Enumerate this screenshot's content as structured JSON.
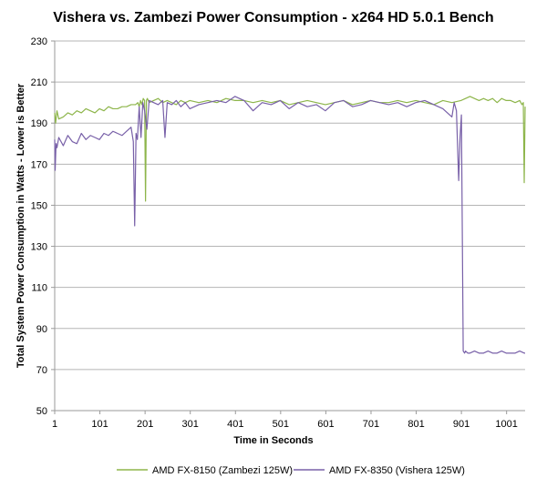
{
  "chart_data": {
    "type": "line",
    "title": "Vishera vs. Zambezi Power Consumption - x264 HD 5.0.1 Bench",
    "xlabel": "Time in Seconds",
    "ylabel": "Total System Power Consumption in Watts - Lower is Better",
    "xlim": [
      1,
      1042
    ],
    "ylim": [
      50,
      230
    ],
    "x_ticks": [
      "1",
      "101",
      "201",
      "301",
      "401",
      "501",
      "601",
      "701",
      "801",
      "901",
      "1001"
    ],
    "y_ticks": [
      "230",
      "210",
      "190",
      "170",
      "150",
      "130",
      "110",
      "90",
      "70",
      "50"
    ],
    "grid": "horizontal",
    "legend_position": "bottom",
    "series": [
      {
        "name": "AMD FX-8150 (Zambezi 125W)",
        "color": "#8db54a",
        "x": [
          1,
          3,
          6,
          10,
          20,
          30,
          40,
          50,
          60,
          70,
          80,
          90,
          100,
          110,
          120,
          130,
          140,
          150,
          160,
          170,
          180,
          185,
          188,
          191,
          194,
          197,
          200,
          202,
          204,
          206,
          210,
          220,
          230,
          240,
          250,
          260,
          270,
          280,
          290,
          300,
          320,
          340,
          360,
          380,
          400,
          420,
          440,
          460,
          480,
          500,
          520,
          540,
          560,
          580,
          600,
          620,
          640,
          660,
          680,
          700,
          720,
          740,
          760,
          780,
          800,
          820,
          840,
          860,
          880,
          900,
          910,
          920,
          930,
          940,
          950,
          960,
          970,
          980,
          990,
          1000,
          1010,
          1020,
          1030,
          1035,
          1038,
          1040,
          1042
        ],
        "values": [
          195,
          190,
          196,
          192,
          193,
          195,
          194,
          196,
          195,
          197,
          196,
          195,
          197,
          196,
          198,
          197,
          197,
          198,
          198,
          199,
          199,
          200,
          198,
          201,
          199,
          202,
          201,
          152,
          201,
          202,
          200,
          201,
          202,
          200,
          201,
          200,
          199,
          201,
          200,
          201,
          200,
          201,
          200,
          202,
          201,
          201,
          200,
          201,
          200,
          201,
          199,
          200,
          201,
          200,
          199,
          200,
          201,
          199,
          200,
          201,
          200,
          200,
          201,
          200,
          201,
          200,
          199,
          201,
          200,
          201,
          202,
          203,
          202,
          201,
          202,
          201,
          202,
          200,
          202,
          201,
          201,
          200,
          201,
          199,
          200,
          161,
          198
        ]
      },
      {
        "name": "AMD FX-8350 (Vishera 125W)",
        "color": "#7860a8",
        "x": [
          1,
          2,
          4,
          6,
          10,
          20,
          30,
          40,
          50,
          60,
          70,
          80,
          90,
          100,
          110,
          120,
          130,
          140,
          150,
          160,
          170,
          175,
          178,
          181,
          184,
          188,
          192,
          196,
          200,
          205,
          210,
          220,
          230,
          240,
          245,
          250,
          260,
          270,
          280,
          290,
          300,
          320,
          340,
          360,
          380,
          400,
          420,
          440,
          460,
          480,
          500,
          520,
          540,
          560,
          580,
          600,
          620,
          640,
          660,
          680,
          700,
          720,
          740,
          760,
          780,
          800,
          820,
          840,
          860,
          870,
          880,
          885,
          890,
          895,
          898,
          901,
          905,
          908,
          910,
          915,
          920,
          930,
          940,
          950,
          960,
          970,
          980,
          990,
          1000,
          1010,
          1020,
          1030,
          1040,
          1042
        ],
        "values": [
          182,
          167,
          180,
          178,
          183,
          179,
          184,
          181,
          180,
          185,
          182,
          184,
          183,
          182,
          185,
          184,
          186,
          185,
          184,
          186,
          188,
          181,
          140,
          185,
          182,
          198,
          183,
          200,
          196,
          187,
          201,
          200,
          199,
          201,
          183,
          200,
          199,
          201,
          198,
          200,
          197,
          199,
          200,
          201,
          200,
          203,
          201,
          196,
          200,
          199,
          201,
          197,
          200,
          198,
          199,
          196,
          200,
          201,
          198,
          199,
          201,
          200,
          199,
          200,
          198,
          200,
          201,
          199,
          197,
          195,
          193,
          200,
          196,
          162,
          183,
          194,
          79,
          78,
          79,
          78,
          78,
          79,
          78,
          78,
          79,
          78,
          78,
          79,
          78,
          78,
          78,
          79,
          78,
          78
        ]
      }
    ]
  }
}
